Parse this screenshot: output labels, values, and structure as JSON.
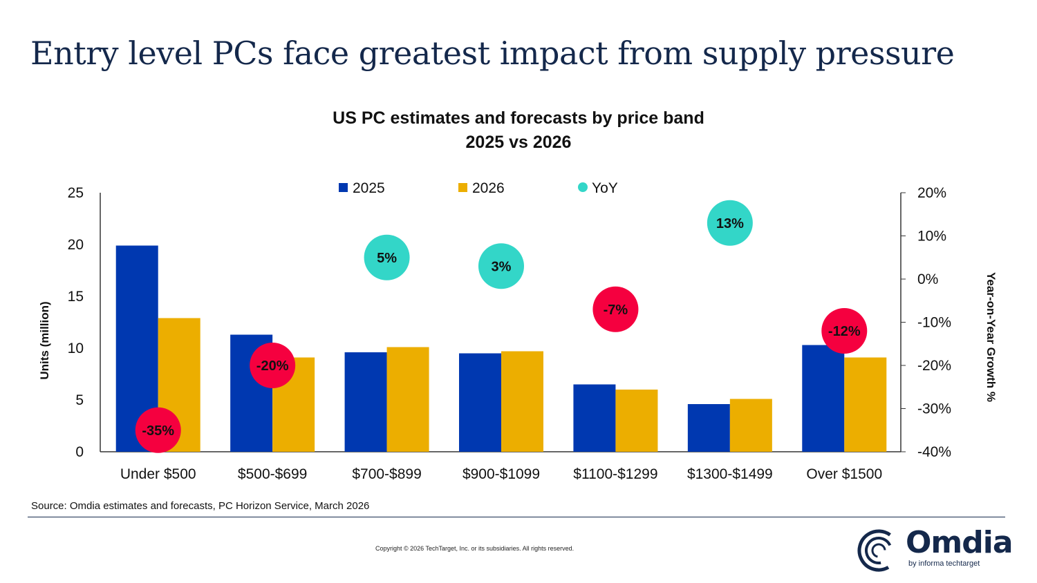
{
  "page": {
    "title": "Entry level PCs face greatest impact from supply pressure",
    "source": "Source: Omdia estimates and forecasts, PC Horizon Service, March 2026",
    "copyright": "Copyright © 2026 TechTarget, Inc. or its subsidiaries. All rights reserved.",
    "logo": {
      "name": "Omdia",
      "sub": "by informa techtarget"
    }
  },
  "chart_data": {
    "type": "bar",
    "title": "US PC estimates and forecasts by price band",
    "subtitle": "2025 vs 2026",
    "categories": [
      "Under $500",
      "$500-$699",
      "$700-$899",
      "$900-$1099",
      "$1100-$1299",
      "$1300-$1499",
      "Over $1500"
    ],
    "series": [
      {
        "name": "2025",
        "color": "#0038b0",
        "values": [
          19.9,
          11.3,
          9.6,
          9.5,
          6.5,
          4.6,
          10.3
        ]
      },
      {
        "name": "2026",
        "color": "#ecae00",
        "values": [
          12.9,
          9.1,
          10.1,
          9.7,
          6.0,
          5.1,
          9.1
        ]
      }
    ],
    "yoy": {
      "name": "YoY",
      "type": "scatter",
      "axis": "right",
      "values": [
        -35,
        -20,
        5,
        3,
        -7,
        13,
        -12
      ],
      "labels": [
        "-35%",
        "-20%",
        "5%",
        "3%",
        "-7%",
        "13%",
        "-12%"
      ],
      "positive_color": "#33d6c8",
      "negative_color": "#f5003f"
    },
    "ylabel": "Units (million)",
    "ylim": [
      0,
      25
    ],
    "yticks": [
      "0",
      "5",
      "10",
      "15",
      "20",
      "25"
    ],
    "y2label": "Year-on-Year Growth %",
    "y2lim": [
      -40,
      20
    ],
    "y2ticks": [
      "-40%",
      "-30%",
      "-20%",
      "-10%",
      "0%",
      "10%",
      "20%"
    ],
    "legend": "top",
    "grid": false
  }
}
